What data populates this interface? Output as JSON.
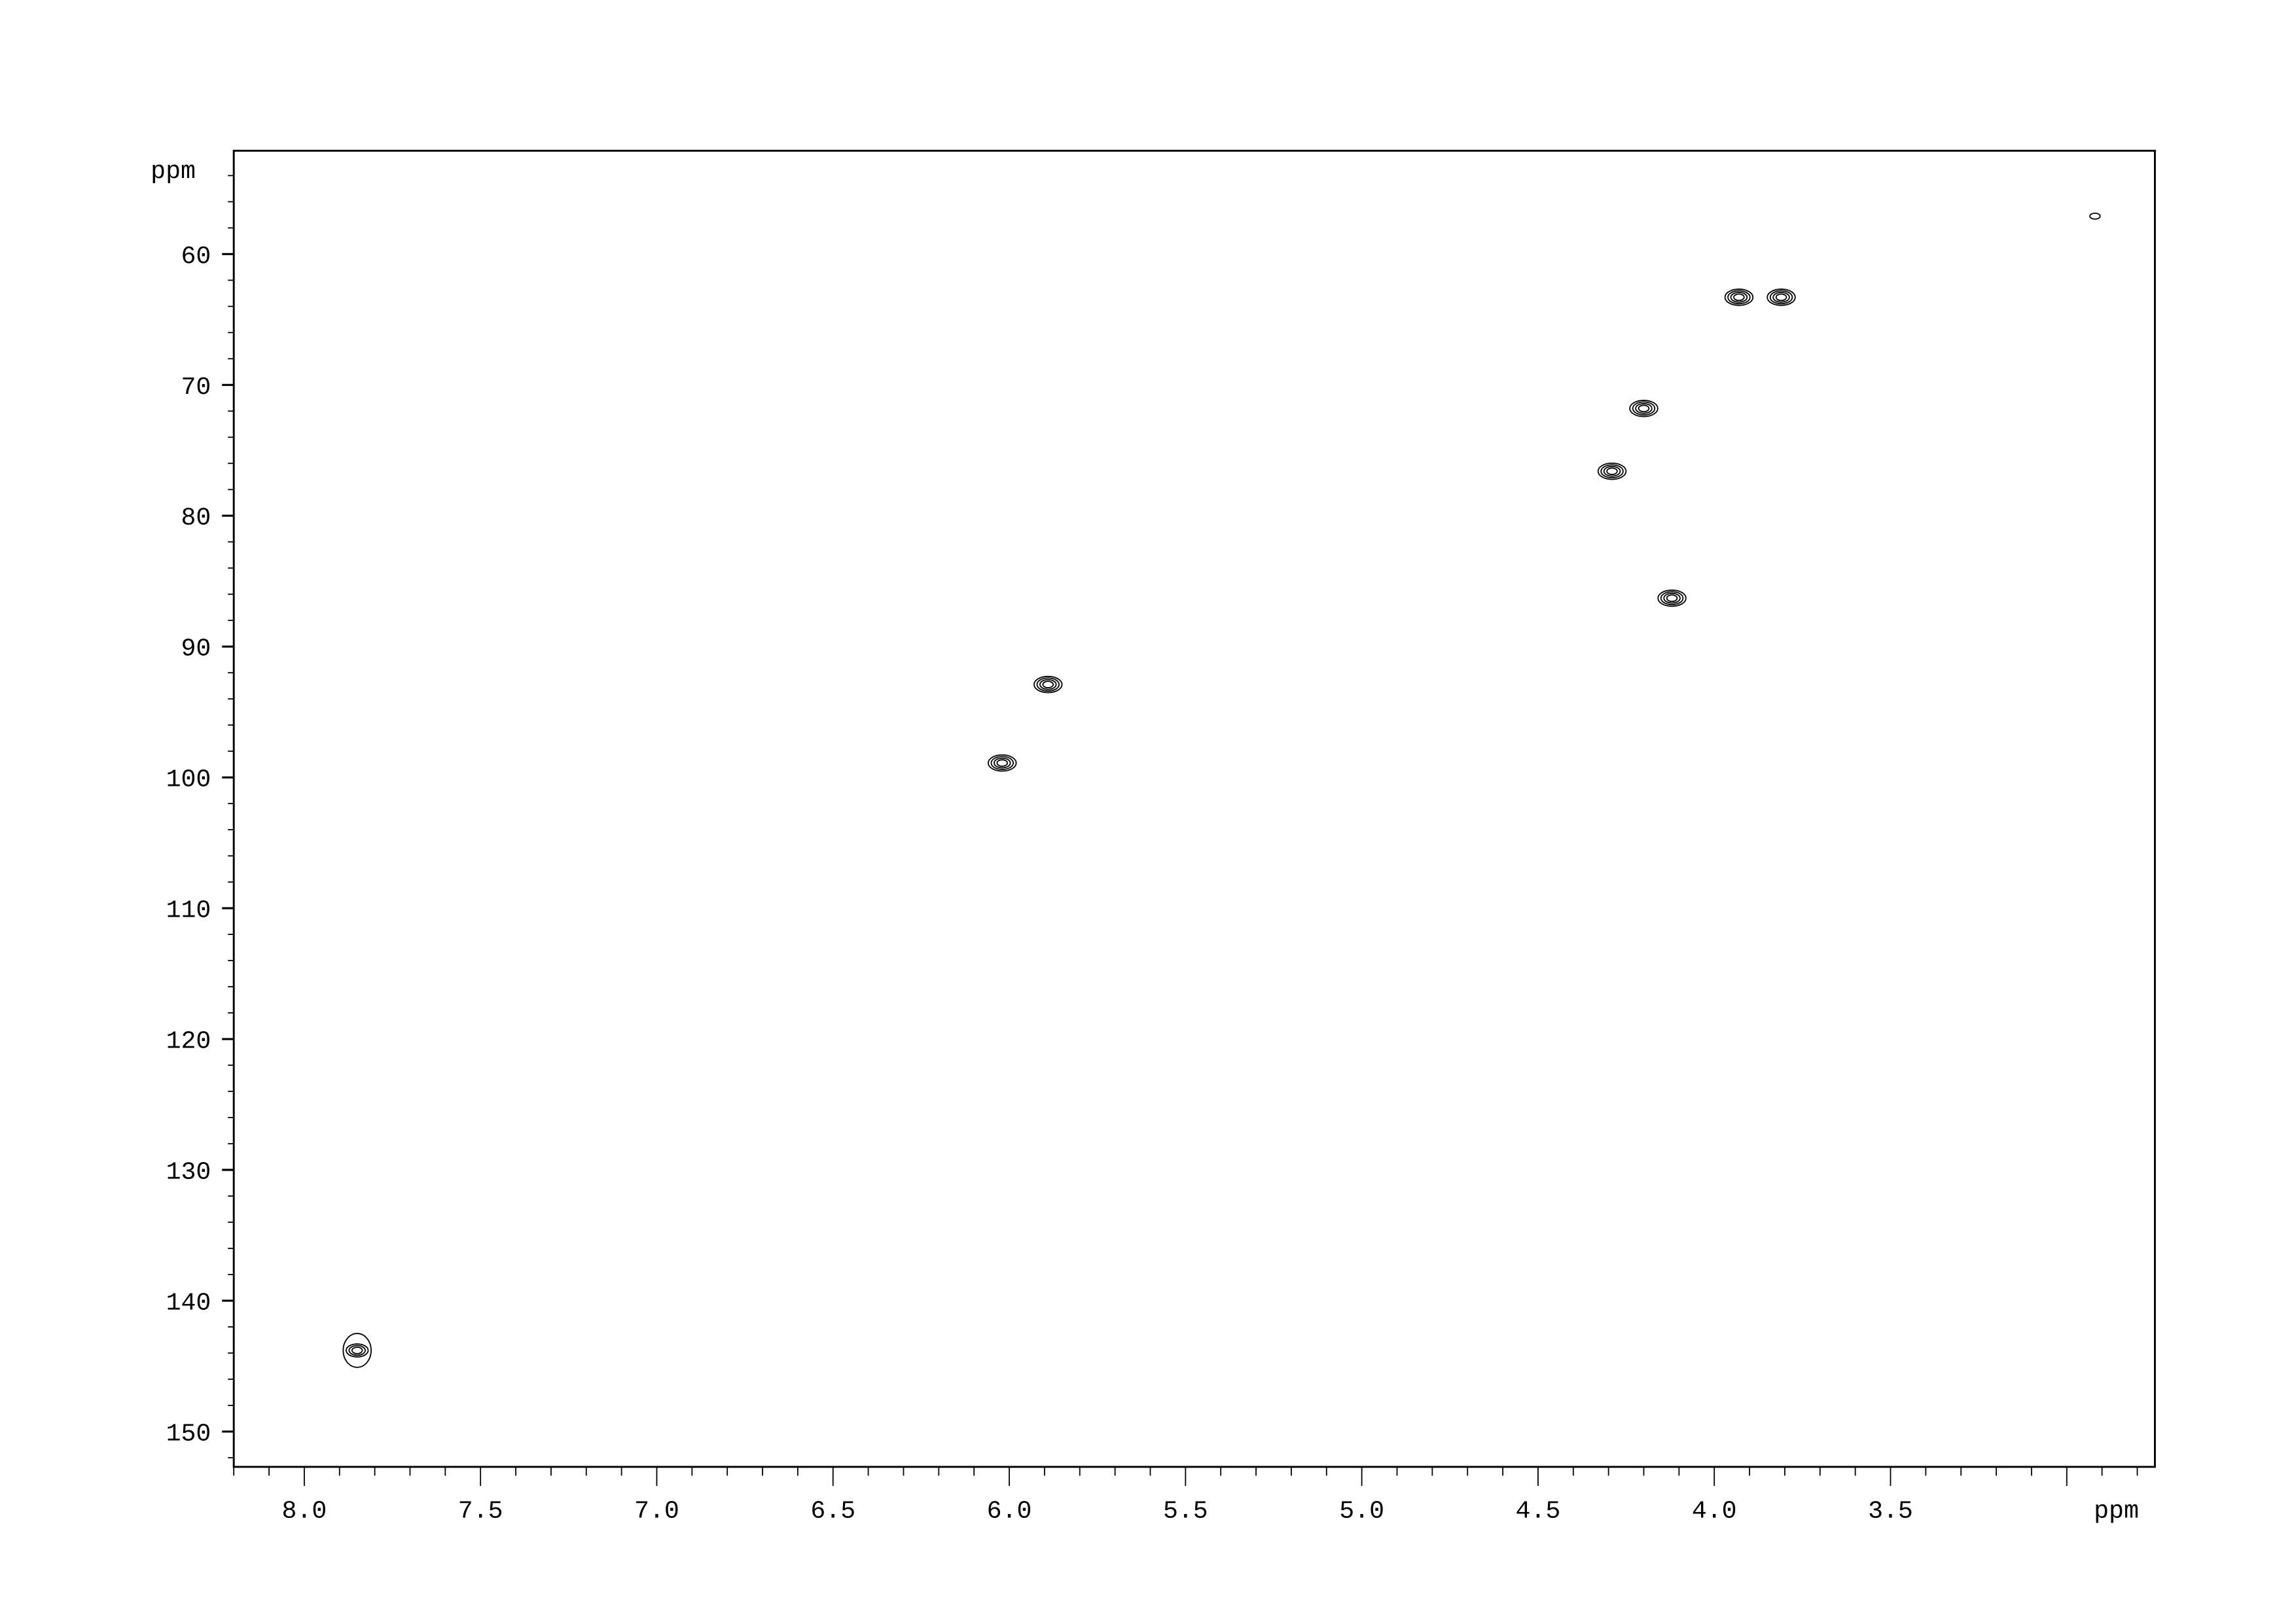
{
  "chart_data": {
    "type": "scatter",
    "subtype": "2D NMR contour plot",
    "title": "",
    "xlabel": "ppm",
    "ylabel": "ppm",
    "xlim": [
      8.2,
      2.75
    ],
    "ylim": [
      52.1,
      152.7
    ],
    "x_reversed": true,
    "y_reversed": true,
    "grid": false,
    "x_ticks": [
      "8.0",
      "7.5",
      "7.0",
      "6.5",
      "6.0",
      "5.5",
      "5.0",
      "4.5",
      "4.0",
      "3.5"
    ],
    "y_ticks": [
      "60",
      "70",
      "80",
      "90",
      "100",
      "110",
      "120",
      "130",
      "140",
      "150"
    ],
    "peaks": [
      {
        "x": 7.85,
        "y": 143.8
      },
      {
        "x": 6.02,
        "y": 98.9
      },
      {
        "x": 5.89,
        "y": 92.9
      },
      {
        "x": 4.29,
        "y": 76.6
      },
      {
        "x": 4.2,
        "y": 71.8
      },
      {
        "x": 4.12,
        "y": 86.3
      },
      {
        "x": 3.93,
        "y": 63.3
      },
      {
        "x": 3.81,
        "y": 63.3
      },
      {
        "x": 2.92,
        "y": 57.1
      }
    ],
    "colors": {
      "contour": "#000000",
      "axis": "#000000",
      "background": "#ffffff"
    }
  }
}
